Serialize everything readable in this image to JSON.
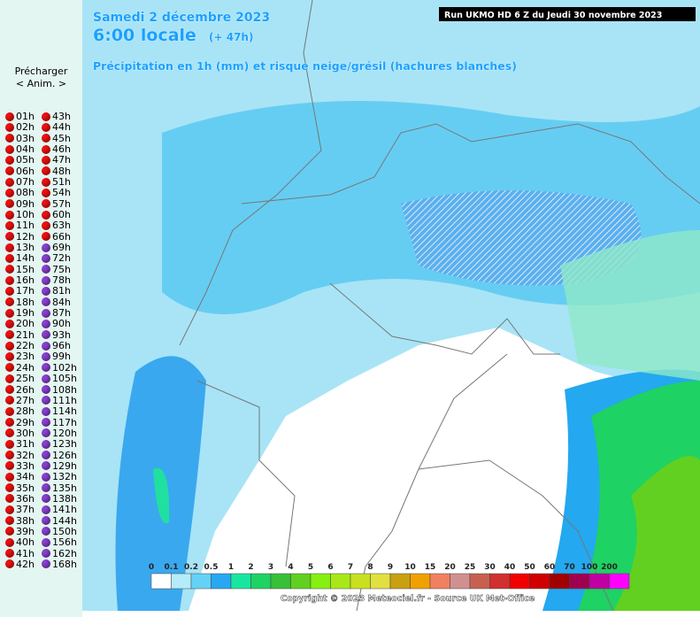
{
  "sidebar": {
    "preload": "Précharger",
    "anim": "< Anim. >",
    "left": [
      "01h",
      "02h",
      "03h",
      "04h",
      "05h",
      "06h",
      "07h",
      "08h",
      "09h",
      "10h",
      "11h",
      "12h",
      "13h",
      "14h",
      "15h",
      "16h",
      "17h",
      "18h",
      "19h",
      "20h",
      "21h",
      "22h",
      "23h",
      "24h",
      "25h",
      "26h",
      "27h",
      "28h",
      "29h",
      "30h",
      "31h",
      "32h",
      "33h",
      "34h",
      "35h",
      "36h",
      "37h",
      "38h",
      "39h",
      "40h",
      "41h",
      "42h"
    ],
    "right": [
      "43h",
      "44h",
      "45h",
      "46h",
      "47h",
      "48h",
      "51h",
      "54h",
      "57h",
      "60h",
      "63h",
      "66h",
      "69h",
      "72h",
      "75h",
      "78h",
      "81h",
      "84h",
      "87h",
      "90h",
      "93h",
      "96h",
      "99h",
      "102h",
      "105h",
      "108h",
      "111h",
      "114h",
      "117h",
      "120h",
      "123h",
      "126h",
      "129h",
      "132h",
      "135h",
      "138h",
      "141h",
      "144h",
      "150h",
      "156h",
      "162h",
      "168h"
    ]
  },
  "map": {
    "date": "Samedi 2 décembre 2023",
    "time": "6:00 locale",
    "lead": "(+ 47h)",
    "subtitle": "Précipitation en 1h (mm) et risque neige/grésil (hachures blanches)",
    "run": "Run UKMO HD 6 Z du Jeudi 30 novembre 2023",
    "copyright": "Copyright © 2023 Meteociel.fr - Source UK Met-Office",
    "legend": {
      "labels": [
        "0",
        "0.1",
        "0.2",
        "0.5",
        "1",
        "2",
        "3",
        "4",
        "5",
        "6",
        "7",
        "8",
        "9",
        "10",
        "15",
        "20",
        "25",
        "30",
        "40",
        "50",
        "60",
        "70",
        "100",
        "200"
      ],
      "colors": [
        "#ffffff",
        "#b4ecfa",
        "#64d2f6",
        "#28a8f2",
        "#18e6a0",
        "#1ed264",
        "#38c038",
        "#62d020",
        "#86f010",
        "#a8e818",
        "#c8e020",
        "#e0e040",
        "#c8a010",
        "#f0a000",
        "#f08060",
        "#d09090",
        "#c86050",
        "#d03030",
        "#f00000",
        "#d00000",
        "#a00000",
        "#a00050",
        "#c000a0",
        "#ff00ff"
      ]
    }
  }
}
